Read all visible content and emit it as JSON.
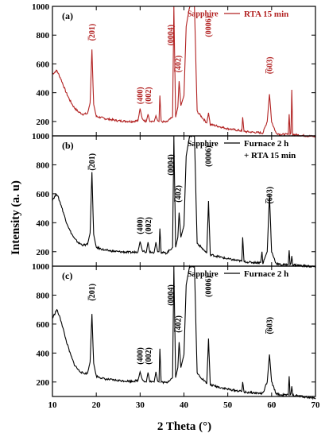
{
  "figure": {
    "xlabel": "2 Theta (°)",
    "ylabel": "Intensity (a. u)",
    "x_ticks": [
      "10",
      "20",
      "30",
      "40",
      "50",
      "60",
      "70"
    ],
    "y_ticks": [
      "200",
      "400",
      "600",
      "800",
      "1000"
    ]
  },
  "chart_data": [
    {
      "type": "line",
      "panel": "(a)",
      "series": [
        {
          "name": "RTA 15 min",
          "color": "#b22222"
        }
      ],
      "xlim": [
        10,
        70
      ],
      "ylim": [
        100,
        1000
      ],
      "baseline": [
        [
          10,
          530
        ],
        [
          11,
          555
        ],
        [
          12,
          490
        ],
        [
          13,
          410
        ],
        [
          14,
          345
        ],
        [
          15,
          295
        ],
        [
          16,
          265
        ],
        [
          17,
          250
        ],
        [
          18,
          255
        ],
        [
          18.6,
          330
        ],
        [
          19,
          700
        ],
        [
          19.4,
          320
        ],
        [
          20,
          235
        ],
        [
          22,
          220
        ],
        [
          25,
          205
        ],
        [
          28,
          200
        ],
        [
          29.5,
          205
        ],
        [
          30,
          290
        ],
        [
          30.5,
          215
        ],
        [
          31.4,
          200
        ],
        [
          31.8,
          250
        ],
        [
          32.2,
          205
        ],
        [
          33.2,
          200
        ],
        [
          33.6,
          240
        ],
        [
          34,
          205
        ],
        [
          34.3,
          200
        ],
        [
          34.5,
          380
        ],
        [
          34.8,
          200
        ],
        [
          36,
          195
        ],
        [
          37.4,
          230
        ],
        [
          37.7,
          1000
        ],
        [
          38.1,
          230
        ],
        [
          38.6,
          300
        ],
        [
          38.9,
          480
        ],
        [
          39.3,
          310
        ],
        [
          40,
          380
        ],
        [
          40.5,
          860
        ],
        [
          41.3,
          1000
        ],
        [
          42.4,
          1000
        ],
        [
          43,
          270
        ],
        [
          45.2,
          190
        ],
        [
          45.6,
          260
        ],
        [
          46,
          180
        ],
        [
          48,
          165
        ],
        [
          50,
          150
        ],
        [
          52,
          140
        ],
        [
          53.2,
          135
        ],
        [
          53.4,
          230
        ],
        [
          53.7,
          130
        ],
        [
          56,
          125
        ],
        [
          58,
          120
        ],
        [
          59,
          200
        ],
        [
          59.5,
          390
        ],
        [
          60,
          200
        ],
        [
          61,
          120
        ],
        [
          62,
          110
        ],
        [
          63.8,
          110
        ],
        [
          64,
          250
        ],
        [
          64.2,
          110
        ],
        [
          64.4,
          120
        ],
        [
          64.6,
          420
        ],
        [
          64.8,
          110
        ],
        [
          68,
          100
        ],
        [
          70,
          95
        ]
      ],
      "annotations": [
        "(̅201)",
        "(400)",
        "(002)",
        "(0004)",
        "(̅402)",
        "Sapphire",
        "(0006)",
        "(̅603)"
      ]
    },
    {
      "type": "line",
      "panel": "(b)",
      "series": [
        {
          "name": "Furnace 2 h + RTA 15 min",
          "color": "#000000"
        }
      ],
      "xlim": [
        10,
        70
      ],
      "ylim": [
        100,
        1000
      ],
      "baseline": [
        [
          10,
          560
        ],
        [
          11,
          600
        ],
        [
          12,
          520
        ],
        [
          13,
          420
        ],
        [
          14,
          345
        ],
        [
          15,
          290
        ],
        [
          16,
          260
        ],
        [
          17,
          245
        ],
        [
          18,
          250
        ],
        [
          18.6,
          330
        ],
        [
          19,
          750
        ],
        [
          19.4,
          320
        ],
        [
          20,
          230
        ],
        [
          22,
          210
        ],
        [
          25,
          200
        ],
        [
          28,
          195
        ],
        [
          29.5,
          200
        ],
        [
          30,
          270
        ],
        [
          30.5,
          210
        ],
        [
          31.4,
          195
        ],
        [
          31.8,
          265
        ],
        [
          32.2,
          200
        ],
        [
          33.2,
          195
        ],
        [
          33.6,
          265
        ],
        [
          34,
          200
        ],
        [
          34.3,
          200
        ],
        [
          34.5,
          360
        ],
        [
          34.8,
          195
        ],
        [
          36,
          190
        ],
        [
          37.4,
          230
        ],
        [
          37.7,
          1000
        ],
        [
          38.1,
          230
        ],
        [
          38.6,
          300
        ],
        [
          38.9,
          470
        ],
        [
          39.3,
          300
        ],
        [
          40,
          380
        ],
        [
          40.5,
          860
        ],
        [
          41.3,
          1000
        ],
        [
          42.4,
          1000
        ],
        [
          43,
          260
        ],
        [
          45.2,
          190
        ],
        [
          45.6,
          550
        ],
        [
          46,
          180
        ],
        [
          48,
          165
        ],
        [
          50,
          150
        ],
        [
          52,
          140
        ],
        [
          53.2,
          135
        ],
        [
          53.4,
          300
        ],
        [
          53.7,
          130
        ],
        [
          56,
          125
        ],
        [
          57.5,
          125
        ],
        [
          57.8,
          200
        ],
        [
          58,
          120
        ],
        [
          59,
          200
        ],
        [
          59.5,
          590
        ],
        [
          60,
          200
        ],
        [
          61,
          120
        ],
        [
          62,
          110
        ],
        [
          63.8,
          110
        ],
        [
          64,
          210
        ],
        [
          64.2,
          110
        ],
        [
          64.4,
          120
        ],
        [
          64.6,
          170
        ],
        [
          64.8,
          110
        ],
        [
          68,
          100
        ],
        [
          70,
          95
        ]
      ],
      "annotations": [
        "(̅201)",
        "(400)",
        "(002)",
        "(0004)",
        "(̅402)",
        "Sapphire",
        "(0006)",
        "(̅603)"
      ]
    },
    {
      "type": "line",
      "panel": "(c)",
      "series": [
        {
          "name": "Furnace 2 h",
          "color": "#000000"
        }
      ],
      "xlim": [
        10,
        70
      ],
      "ylim": [
        100,
        1000
      ],
      "baseline": [
        [
          10,
          640
        ],
        [
          11,
          700
        ],
        [
          12,
          620
        ],
        [
          13,
          500
        ],
        [
          14,
          400
        ],
        [
          15,
          320
        ],
        [
          16,
          280
        ],
        [
          17,
          260
        ],
        [
          18,
          260
        ],
        [
          18.6,
          340
        ],
        [
          19,
          670
        ],
        [
          19.4,
          330
        ],
        [
          20,
          240
        ],
        [
          22,
          220
        ],
        [
          25,
          210
        ],
        [
          28,
          205
        ],
        [
          29.5,
          210
        ],
        [
          30,
          270
        ],
        [
          30.5,
          215
        ],
        [
          31.4,
          200
        ],
        [
          31.8,
          265
        ],
        [
          32.2,
          205
        ],
        [
          33.2,
          200
        ],
        [
          33.6,
          270
        ],
        [
          34,
          205
        ],
        [
          34.3,
          200
        ],
        [
          34.5,
          430
        ],
        [
          34.8,
          200
        ],
        [
          36,
          195
        ],
        [
          37.4,
          230
        ],
        [
          37.7,
          1000
        ],
        [
          38.1,
          230
        ],
        [
          38.6,
          300
        ],
        [
          38.9,
          475
        ],
        [
          39.3,
          300
        ],
        [
          40,
          390
        ],
        [
          40.5,
          870
        ],
        [
          41.3,
          1000
        ],
        [
          42.4,
          1000
        ],
        [
          43,
          260
        ],
        [
          45.2,
          190
        ],
        [
          45.6,
          500
        ],
        [
          46,
          180
        ],
        [
          48,
          165
        ],
        [
          50,
          150
        ],
        [
          52,
          140
        ],
        [
          53.2,
          135
        ],
        [
          53.4,
          200
        ],
        [
          53.7,
          130
        ],
        [
          56,
          125
        ],
        [
          58,
          120
        ],
        [
          59,
          200
        ],
        [
          59.5,
          390
        ],
        [
          60,
          200
        ],
        [
          61,
          120
        ],
        [
          62,
          110
        ],
        [
          63.8,
          110
        ],
        [
          64,
          240
        ],
        [
          64.2,
          110
        ],
        [
          64.4,
          120
        ],
        [
          64.6,
          170
        ],
        [
          64.8,
          110
        ],
        [
          68,
          95
        ],
        [
          70,
          90
        ]
      ],
      "annotations": [
        "(̅201)",
        "(400)",
        "(002)",
        "(0004)",
        "(̅402)",
        "Sapphire",
        "(0006)",
        "(̅603)"
      ]
    }
  ]
}
